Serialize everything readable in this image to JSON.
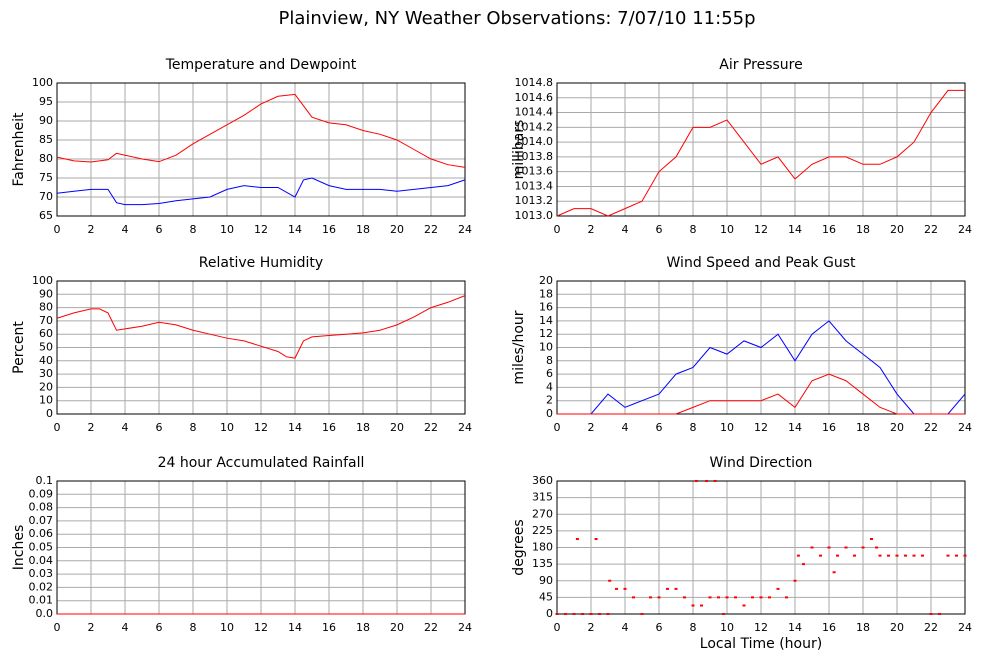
{
  "title": "Plainview, NY Weather Observations: 7/07/10 11:55p",
  "chart_data": [
    {
      "type": "line",
      "title": "Temperature and Dewpoint",
      "ylabel": "Fahrenheit",
      "x": [
        0,
        1,
        2,
        3,
        3.5,
        4,
        5,
        6,
        7,
        8,
        9,
        10,
        11,
        12,
        13,
        14,
        14.5,
        15,
        16,
        17,
        18,
        19,
        20,
        21,
        22,
        23,
        24
      ],
      "series": [
        {
          "color": "#ff0000",
          "values": [
            80.5,
            79.5,
            79.2,
            79.8,
            81.5,
            81,
            80,
            79.3,
            81,
            84,
            86.5,
            89,
            91.5,
            94.5,
            96.5,
            97,
            94,
            91,
            89.5,
            89,
            87.5,
            86.5,
            85,
            82.5,
            80,
            78.5,
            77.8
          ]
        },
        {
          "color": "#0000ff",
          "values": [
            71,
            71.5,
            72,
            72,
            68.5,
            68,
            68,
            68.3,
            69,
            69.5,
            70,
            72,
            73,
            72.5,
            72.5,
            70,
            74.5,
            75,
            73,
            72,
            72,
            72,
            71.5,
            72,
            72.5,
            73,
            74.5
          ]
        }
      ],
      "xlim": [
        0,
        24
      ],
      "xticks": [
        0,
        2,
        4,
        6,
        8,
        10,
        12,
        14,
        16,
        18,
        20,
        22,
        24
      ],
      "ylim": [
        65,
        100
      ],
      "yticks": [
        65,
        70,
        75,
        80,
        85,
        90,
        95,
        100
      ],
      "grid": true
    },
    {
      "type": "line",
      "title": "Air Pressure",
      "ylabel": "millibars",
      "x": [
        0,
        1,
        2,
        3,
        4,
        5,
        6,
        7,
        8,
        9,
        10,
        11,
        12,
        13,
        14,
        15,
        16,
        17,
        18,
        19,
        20,
        21,
        22,
        23,
        24
      ],
      "series": [
        {
          "color": "#ff0000",
          "values": [
            1013.0,
            1013.1,
            1013.1,
            1013.0,
            1013.1,
            1013.2,
            1013.6,
            1013.8,
            1014.2,
            1014.2,
            1014.3,
            1014.0,
            1013.7,
            1013.8,
            1013.5,
            1013.7,
            1013.8,
            1013.8,
            1013.7,
            1013.7,
            1013.8,
            1014.0,
            1014.4,
            1014.7,
            1014.7
          ]
        }
      ],
      "xlim": [
        0,
        24
      ],
      "xticks": [
        0,
        2,
        4,
        6,
        8,
        10,
        12,
        14,
        16,
        18,
        20,
        22,
        24
      ],
      "ylim": [
        1013.0,
        1014.8
      ],
      "yticks": [
        {
          "value": 1013,
          "label": "1013.0"
        },
        1013.2,
        1013.4,
        1013.6,
        1013.8,
        {
          "value": 1014,
          "label": "1014.0"
        },
        1014.2,
        1014.4,
        1014.6,
        1014.8
      ],
      "grid": true
    },
    {
      "type": "line",
      "title": "Relative Humidity",
      "ylabel": "Percent",
      "x": [
        0,
        1,
        2,
        2.5,
        3,
        3.5,
        4,
        5,
        6,
        7,
        8,
        9,
        10,
        11,
        12,
        13,
        13.5,
        14,
        14.5,
        15,
        16,
        17,
        18,
        19,
        20,
        21,
        22,
        23,
        24
      ],
      "series": [
        {
          "color": "#ff0000",
          "values": [
            72,
            76,
            79,
            79,
            76,
            63,
            64,
            66,
            69,
            67,
            63,
            60,
            57,
            55,
            51,
            47,
            43,
            42,
            55,
            58,
            59,
            60,
            61,
            63,
            67,
            73,
            80,
            84,
            89
          ]
        }
      ],
      "xlim": [
        0,
        24
      ],
      "xticks": [
        0,
        2,
        4,
        6,
        8,
        10,
        12,
        14,
        16,
        18,
        20,
        22,
        24
      ],
      "ylim": [
        0,
        100
      ],
      "yticks": [
        0,
        10,
        20,
        30,
        40,
        50,
        60,
        70,
        80,
        90,
        100
      ],
      "grid": true
    },
    {
      "type": "line",
      "title": "Wind Speed and Peak Gust",
      "ylabel": "miles/hour",
      "x": [
        0,
        1,
        2,
        3,
        4,
        5,
        6,
        7,
        8,
        9,
        10,
        11,
        12,
        13,
        14,
        15,
        16,
        17,
        18,
        19,
        20,
        21,
        22,
        23,
        24
      ],
      "series": [
        {
          "color": "#0000ff",
          "values": [
            0,
            0,
            0,
            3,
            1,
            2,
            3,
            6,
            7,
            10,
            9,
            11,
            10,
            12,
            8,
            12,
            14,
            11,
            9,
            7,
            3,
            0,
            0,
            0,
            3
          ]
        },
        {
          "color": "#ff0000",
          "values": [
            0,
            0,
            0,
            0,
            0,
            0,
            0,
            0,
            1,
            2,
            2,
            2,
            2,
            3,
            1,
            5,
            6,
            5,
            3,
            1,
            0,
            0,
            0,
            0,
            0
          ]
        }
      ],
      "xlim": [
        0,
        24
      ],
      "xticks": [
        0,
        2,
        4,
        6,
        8,
        10,
        12,
        14,
        16,
        18,
        20,
        22,
        24
      ],
      "ylim": [
        0,
        20
      ],
      "yticks": [
        0,
        2,
        4,
        6,
        8,
        10,
        12,
        14,
        16,
        18,
        20
      ],
      "grid": true
    },
    {
      "type": "line",
      "title": "24 hour Accumulated Rainfall",
      "ylabel": "Inches",
      "x": [
        0,
        24
      ],
      "series": [
        {
          "color": "#ff0000",
          "values": [
            0,
            0
          ]
        }
      ],
      "xlim": [
        0,
        24
      ],
      "xticks": [
        0,
        2,
        4,
        6,
        8,
        10,
        12,
        14,
        16,
        18,
        20,
        22,
        24
      ],
      "ylim": [
        0,
        0.1
      ],
      "yticks": [
        {
          "value": 0,
          "label": "0.0"
        },
        0.01,
        0.02,
        0.03,
        0.04,
        0.05,
        0.06,
        0.07,
        0.08,
        0.09,
        0.1
      ],
      "grid": true
    },
    {
      "type": "scatter",
      "title": "Wind Direction",
      "ylabel": "degrees",
      "xlabel": "Local Time (hour)",
      "x": [
        0,
        0.5,
        1,
        1.2,
        1.5,
        2,
        2.3,
        2.5,
        3,
        3.1,
        3.5,
        4,
        4.5,
        5,
        5.5,
        6,
        6.5,
        7,
        7.5,
        8,
        8.2,
        8.5,
        8.8,
        9,
        9.3,
        9.5,
        9.8,
        10,
        10.5,
        11,
        11.5,
        12,
        12.5,
        13,
        13.5,
        14,
        14.2,
        14.5,
        15,
        15.5,
        16,
        16.3,
        16.5,
        17,
        17.5,
        18,
        18.5,
        18.8,
        19,
        19.5,
        20,
        20.5,
        21,
        21.5,
        22,
        22.5,
        23,
        23.5,
        24
      ],
      "series": [
        {
          "color": "#ff0000",
          "values": [
            0,
            0,
            0,
            203,
            0,
            0,
            203,
            0,
            0,
            90,
            68,
            68,
            45,
            0,
            45,
            45,
            68,
            68,
            45,
            23,
            360,
            23,
            360,
            45,
            360,
            45,
            0,
            45,
            45,
            23,
            45,
            45,
            45,
            68,
            45,
            90,
            158,
            135,
            180,
            158,
            180,
            113,
            158,
            180,
            158,
            180,
            203,
            180,
            158,
            158,
            158,
            158,
            158,
            158,
            0,
            0,
            158,
            158,
            158
          ]
        }
      ],
      "xlim": [
        0,
        24
      ],
      "xticks": [
        0,
        2,
        4,
        6,
        8,
        10,
        12,
        14,
        16,
        18,
        20,
        22,
        24
      ],
      "ylim": [
        0,
        360
      ],
      "yticks": [
        0,
        45,
        90,
        135,
        180,
        225,
        270,
        315,
        360
      ],
      "grid": true
    }
  ]
}
